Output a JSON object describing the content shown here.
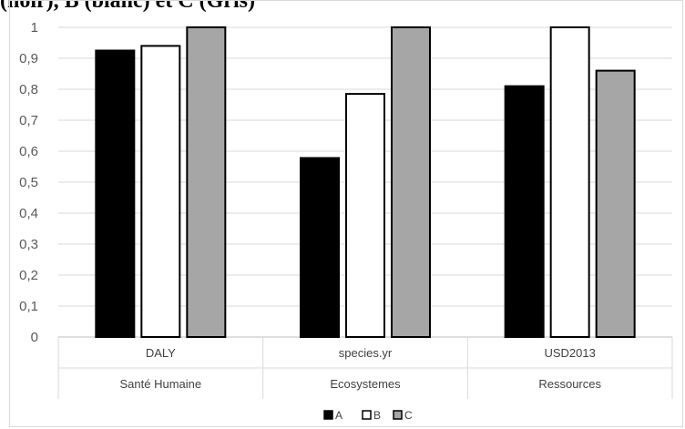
{
  "title": "(noir), B (blanc) et C (Gris)",
  "chart_data": {
    "type": "bar",
    "title": "(noir), B (blanc) et C (Gris)",
    "xlabel": "",
    "ylabel": "",
    "ylim": [
      0,
      1
    ],
    "yticks": [
      "0",
      "0,1",
      "0,2",
      "0,3",
      "0,4",
      "0,5",
      "0,6",
      "0,7",
      "0,8",
      "0,9",
      "1"
    ],
    "grid": true,
    "legend": "bottom",
    "categories": [
      "DALY",
      "species.yr",
      "USD2013"
    ],
    "groups": [
      "Santé Humaine",
      "Ecosystemes",
      "Ressources"
    ],
    "series": [
      {
        "name": "A",
        "color": "#000000",
        "values": [
          0.925,
          0.578,
          0.81
        ]
      },
      {
        "name": "B",
        "color": "#ffffff",
        "values": [
          0.94,
          0.785,
          1.0
        ]
      },
      {
        "name": "C",
        "color": "#a6a6a6",
        "values": [
          1.0,
          1.0,
          0.86
        ]
      }
    ]
  }
}
